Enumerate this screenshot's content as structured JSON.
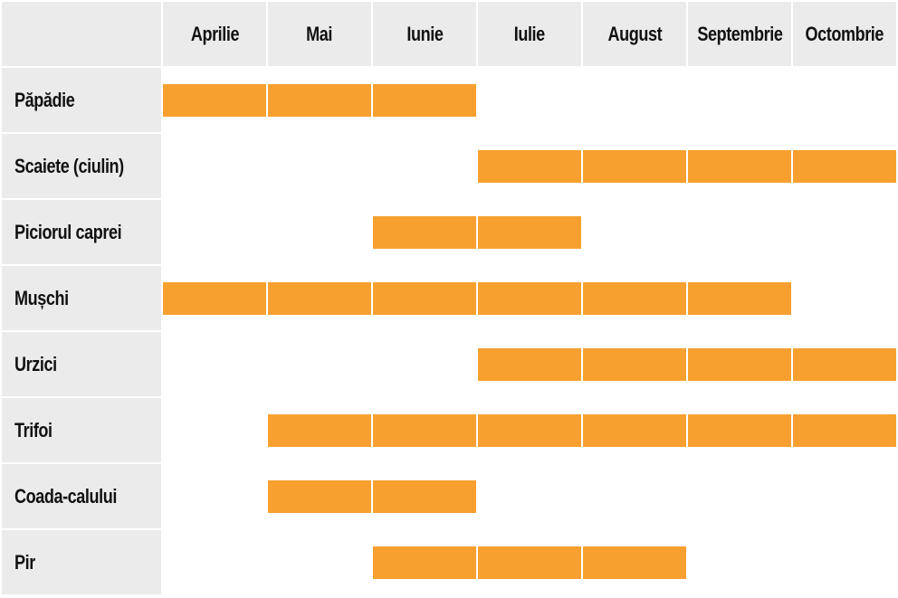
{
  "chart_data": {
    "type": "table",
    "months": [
      "Aprilie",
      "Mai",
      "Iunie",
      "Iulie",
      "August",
      "Septembrie",
      "Octombrie"
    ],
    "rows": [
      {
        "label": "Păpădie",
        "active": [
          1,
          1,
          1,
          0,
          0,
          0,
          0
        ]
      },
      {
        "label": "Scaiete (ciulin)",
        "active": [
          0,
          0,
          0,
          1,
          1,
          1,
          1
        ]
      },
      {
        "label": "Piciorul caprei",
        "active": [
          0,
          0,
          1,
          1,
          0,
          0,
          0
        ]
      },
      {
        "label": "Mușchi",
        "active": [
          1,
          1,
          1,
          1,
          1,
          1,
          0
        ]
      },
      {
        "label": "Urzici",
        "active": [
          0,
          0,
          0,
          1,
          1,
          1,
          1
        ]
      },
      {
        "label": "Trifoi",
        "active": [
          0,
          1,
          1,
          1,
          1,
          1,
          1
        ]
      },
      {
        "label": "Coada-calului",
        "active": [
          0,
          1,
          1,
          0,
          0,
          0,
          0
        ]
      },
      {
        "label": "Pir",
        "active": [
          0,
          0,
          1,
          1,
          1,
          0,
          0
        ]
      }
    ],
    "colors": {
      "bar": "#f7a02f",
      "header_bg": "#ebebeb",
      "background": "#ffffff",
      "divider": "#ffffff"
    }
  }
}
